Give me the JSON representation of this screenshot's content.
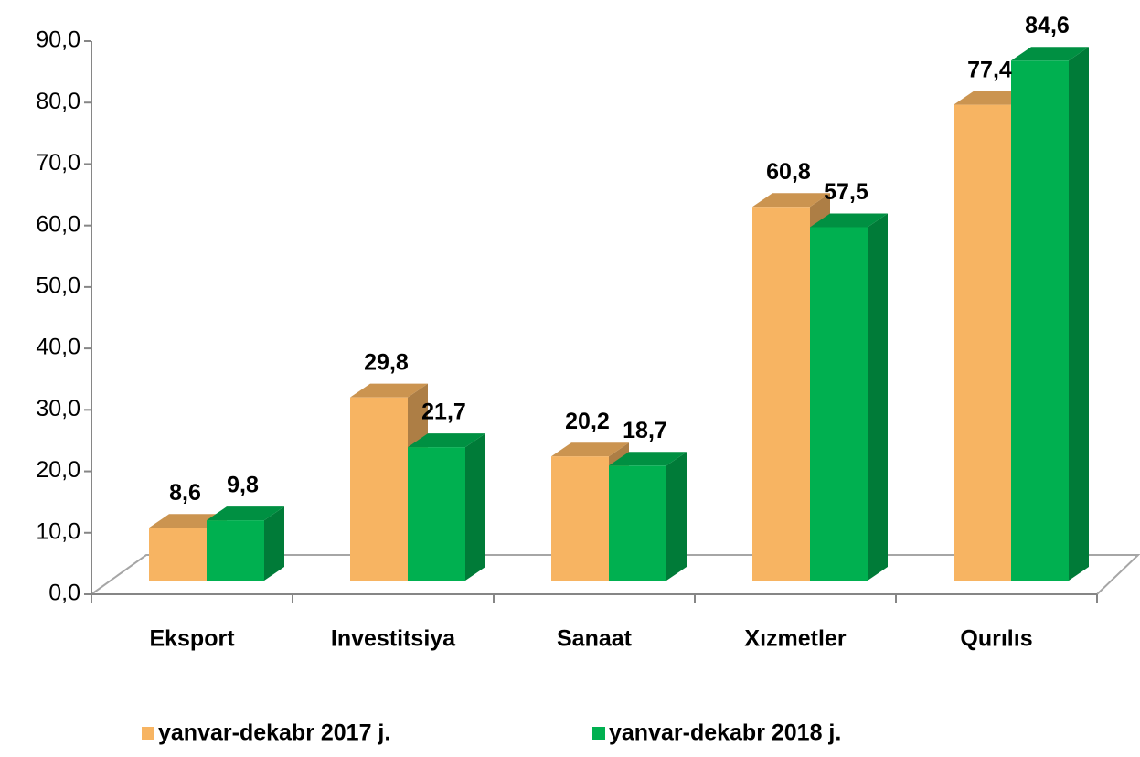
{
  "chart_data": {
    "type": "bar3d",
    "categories": [
      "Eksport",
      "Investitsiya",
      "Sanaat",
      "Xızmetler",
      "Qurılıs"
    ],
    "series": [
      {
        "name": "yanvar-dekabr 2017 j.",
        "color": "#F7B462",
        "values": [
          8.6,
          29.8,
          20.2,
          60.8,
          77.4
        ],
        "value_labels": [
          "8,6",
          "29,8",
          "20,2",
          "60,8",
          "77,4"
        ]
      },
      {
        "name": "yanvar-dekabr 2018 j.",
        "color": "#00B050",
        "values": [
          9.8,
          21.7,
          18.7,
          57.5,
          84.6
        ],
        "value_labels": [
          "9,8",
          "21,7",
          "18,7",
          "57,5",
          "84,6"
        ]
      }
    ],
    "ylim": [
      0,
      90
    ],
    "yticks": [
      {
        "value": 0,
        "label": "0,0"
      },
      {
        "value": 10,
        "label": "10,0"
      },
      {
        "value": 20,
        "label": "20,0"
      },
      {
        "value": 30,
        "label": "30,0"
      },
      {
        "value": 40,
        "label": "40,0"
      },
      {
        "value": 50,
        "label": "50,0"
      },
      {
        "value": 60,
        "label": "60,0"
      },
      {
        "value": 70,
        "label": "70,0"
      },
      {
        "value": 80,
        "label": "80,0"
      },
      {
        "value": 90,
        "label": "90,0"
      }
    ],
    "legend": "bottom"
  }
}
